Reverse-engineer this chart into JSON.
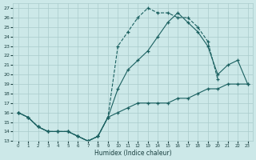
{
  "xlabel": "Humidex (Indice chaleur)",
  "xlim": [
    -0.5,
    23.5
  ],
  "ylim": [
    13,
    27.5
  ],
  "xticks": [
    0,
    1,
    2,
    3,
    4,
    5,
    6,
    7,
    8,
    9,
    10,
    11,
    12,
    13,
    14,
    15,
    16,
    17,
    18,
    19,
    20,
    21,
    22,
    23
  ],
  "yticks": [
    13,
    14,
    15,
    16,
    17,
    18,
    19,
    20,
    21,
    22,
    23,
    24,
    25,
    26,
    27
  ],
  "bg_color": "#cce8e8",
  "grid_color": "#aacccc",
  "line_color": "#1a6060",
  "curve1_x": [
    0,
    1,
    2,
    3,
    4,
    5,
    6,
    7,
    8,
    9,
    10,
    11,
    12,
    13,
    14,
    15,
    16,
    17,
    18,
    19,
    20,
    21,
    22,
    23
  ],
  "curve1_y": [
    16.0,
    15.5,
    14.5,
    14.0,
    14.0,
    14.0,
    13.5,
    13.0,
    13.5,
    15.5,
    16.0,
    16.5,
    17.0,
    17.0,
    17.0,
    17.0,
    17.5,
    17.5,
    18.0,
    18.5,
    18.5,
    19.0,
    19.0,
    19.0
  ],
  "curve2_x": [
    0,
    1,
    2,
    3,
    4,
    5,
    6,
    7,
    8,
    9,
    10,
    11,
    12,
    13,
    14,
    15,
    16,
    17,
    18,
    19,
    20
  ],
  "curve2_y": [
    16.0,
    15.5,
    14.5,
    14.0,
    14.0,
    14.0,
    13.5,
    13.0,
    13.5,
    15.5,
    23.0,
    24.5,
    26.0,
    27.0,
    26.5,
    26.5,
    26.0,
    26.0,
    25.0,
    23.5,
    19.5
  ],
  "curve3_x": [
    0,
    1,
    2,
    3,
    4,
    5,
    6,
    7,
    8,
    9,
    10,
    11,
    12,
    13,
    14,
    15,
    16,
    17,
    18,
    19,
    20,
    21,
    22,
    23
  ],
  "curve3_y": [
    16.0,
    15.5,
    14.5,
    14.0,
    14.0,
    14.0,
    13.5,
    13.0,
    13.5,
    15.5,
    18.5,
    20.5,
    21.5,
    22.5,
    24.0,
    25.5,
    26.5,
    25.5,
    24.5,
    23.0,
    20.0,
    21.0,
    21.5,
    19.0
  ]
}
